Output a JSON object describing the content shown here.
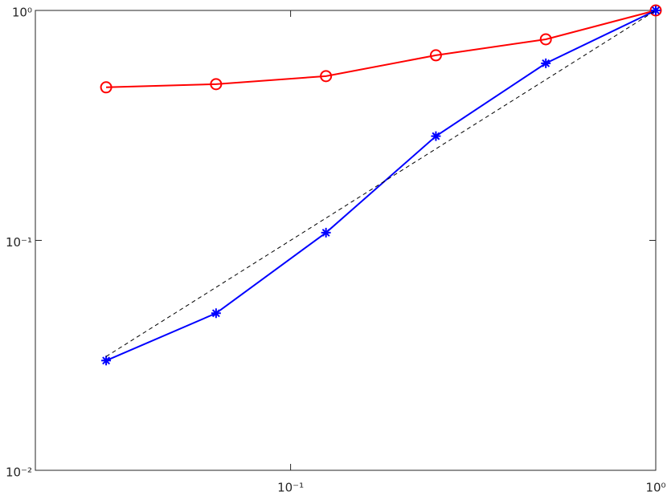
{
  "chart_data": {
    "type": "line",
    "xscale": "log",
    "yscale": "log",
    "xlim": [
      0.02,
      1
    ],
    "ylim": [
      0.01,
      1
    ],
    "xticks": [
      {
        "value": 0.1,
        "label": "10⁻¹"
      },
      {
        "value": 1,
        "label": "10⁰"
      }
    ],
    "yticks": [
      {
        "value": 0.01,
        "label": "10⁻²"
      },
      {
        "value": 0.1,
        "label": "10⁻¹"
      },
      {
        "value": 1,
        "label": "10⁰"
      }
    ],
    "grid": false,
    "series": [
      {
        "color": "#ff0000",
        "marker": "circle",
        "linestyle": "solid",
        "x": [
          0.03125,
          0.0625,
          0.125,
          0.25,
          0.5,
          1
        ],
        "values": [
          0.463,
          0.478,
          0.518,
          0.638,
          0.749,
          1
        ]
      },
      {
        "color": "#0000ff",
        "marker": "asterisk",
        "linestyle": "solid",
        "x": [
          0.03125,
          0.0625,
          0.125,
          0.25,
          0.5,
          1
        ],
        "values": [
          0.03,
          0.0482,
          0.108,
          0.284,
          0.589,
          1
        ]
      },
      {
        "color": "#000000",
        "marker": "none",
        "linestyle": "dashed",
        "x": [
          0.03125,
          1
        ],
        "values": [
          0.03125,
          1
        ]
      }
    ]
  }
}
